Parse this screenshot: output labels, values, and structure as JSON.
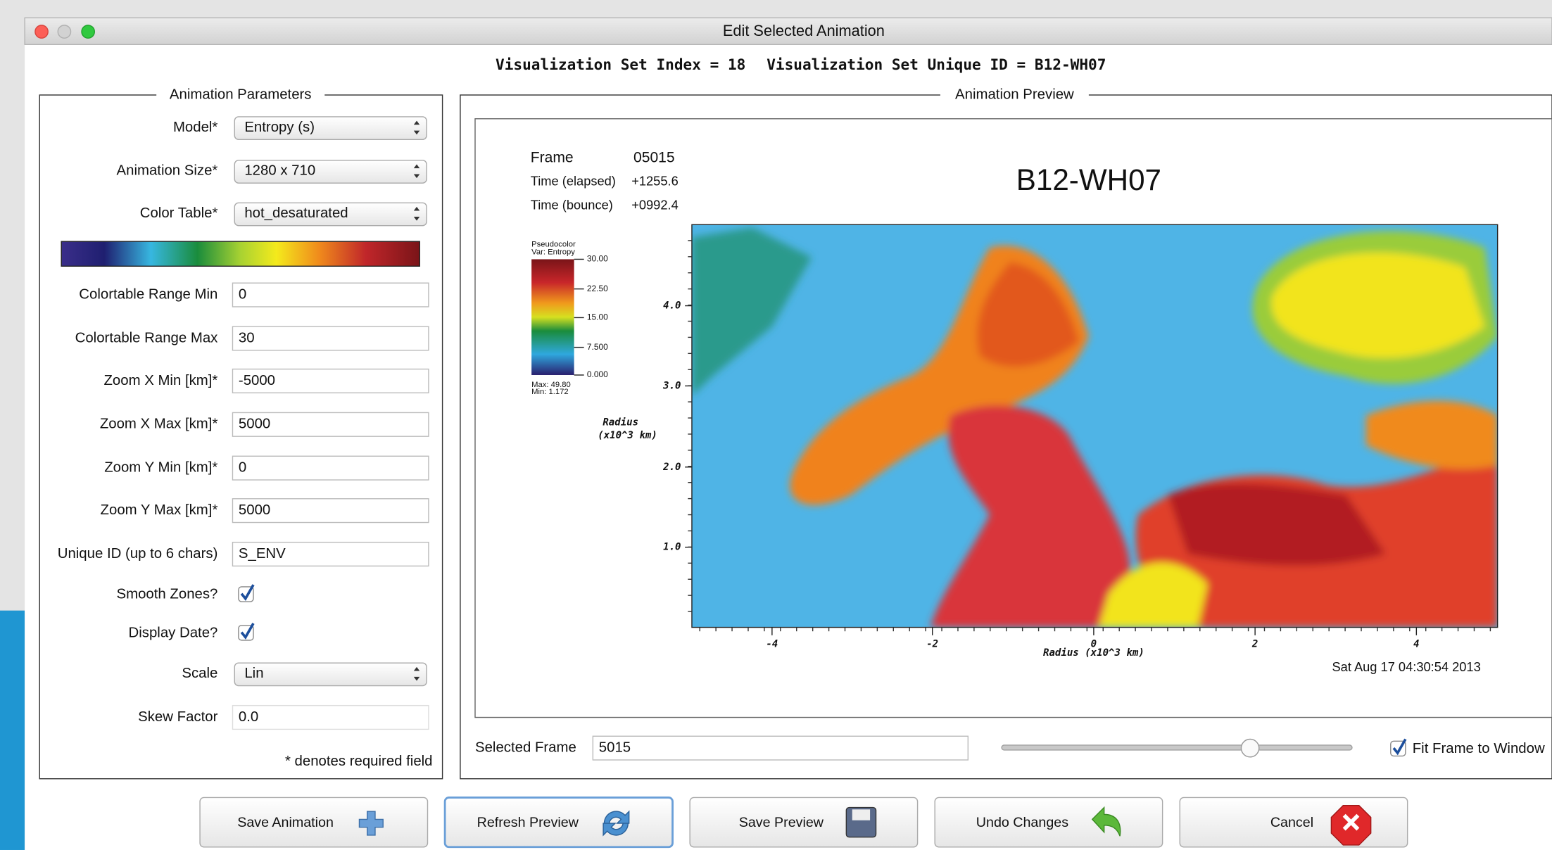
{
  "window": {
    "title": "Edit Selected Animation"
  },
  "header": {
    "index": "Visualization Set Index = 18",
    "unique_id": "Visualization Set Unique ID = B12-WH07"
  },
  "parameters": {
    "title": "Animation Parameters",
    "fields": [
      {
        "label": "Model*",
        "value": "Entropy (s)",
        "kind": "select"
      },
      {
        "label": "Animation Size*",
        "value": "1280 x 710",
        "kind": "select"
      },
      {
        "label": "Color Table*",
        "value": "hot_desaturated",
        "kind": "select"
      },
      {
        "label": "Colortable Range Min",
        "value": "0",
        "kind": "text"
      },
      {
        "label": "Colortable Range Max",
        "value": "30",
        "kind": "text"
      },
      {
        "label": "Zoom X Min [km]*",
        "value": "-5000",
        "kind": "text"
      },
      {
        "label": "Zoom X Max [km]*",
        "value": "5000",
        "kind": "text"
      },
      {
        "label": "Zoom Y Min [km]*",
        "value": "0",
        "kind": "text"
      },
      {
        "label": "Zoom Y Max [km]*",
        "value": "5000",
        "kind": "text"
      },
      {
        "label": "Unique ID (up to 6 chars)",
        "value": "S_ENV",
        "kind": "text"
      },
      {
        "label": "Smooth Zones?",
        "checked": true,
        "kind": "check"
      },
      {
        "label": "Display Date?",
        "checked": true,
        "kind": "check"
      },
      {
        "label": "Scale",
        "value": "Lin",
        "kind": "select"
      },
      {
        "label": "Skew Factor",
        "value": "0.0",
        "kind": "text",
        "disabled": true
      }
    ],
    "note": "* denotes required field"
  },
  "preview": {
    "title": "Animation Preview",
    "frame_label": "Frame",
    "frame": "05015",
    "time_elapsed_label": "Time (elapsed)",
    "time_elapsed": "+1255.6",
    "time_bounce_label": "Time (bounce)",
    "time_bounce": "+0992.4",
    "plot_title": "B12-WH07",
    "legend": {
      "title": "Pseudocolor",
      "var": "Var: Entropy",
      "ticks": [
        "30.00",
        "22.50",
        "15.00",
        "7.500",
        "0.000"
      ],
      "max": "Max: 49.80",
      "min": "Min: 1.172"
    },
    "y_axis_label": [
      "Radius",
      "(x10^3 km)"
    ],
    "yticks": [
      "4.0",
      "3.0",
      "2.0",
      "1.0"
    ],
    "xticks": [
      "-4",
      "-2",
      "0",
      "2",
      "4"
    ],
    "x_axis_label": "Radius (x10^3 km)",
    "date": "Sat Aug 17 04:30:54 2013"
  },
  "frame_control": {
    "label": "Selected Frame",
    "value": "5015",
    "fit_label": "Fit Frame to Window",
    "fit_checked": true
  },
  "buttons": [
    "Save Animation",
    "Refresh Preview",
    "Save Preview",
    "Undo Changes",
    "Cancel"
  ]
}
